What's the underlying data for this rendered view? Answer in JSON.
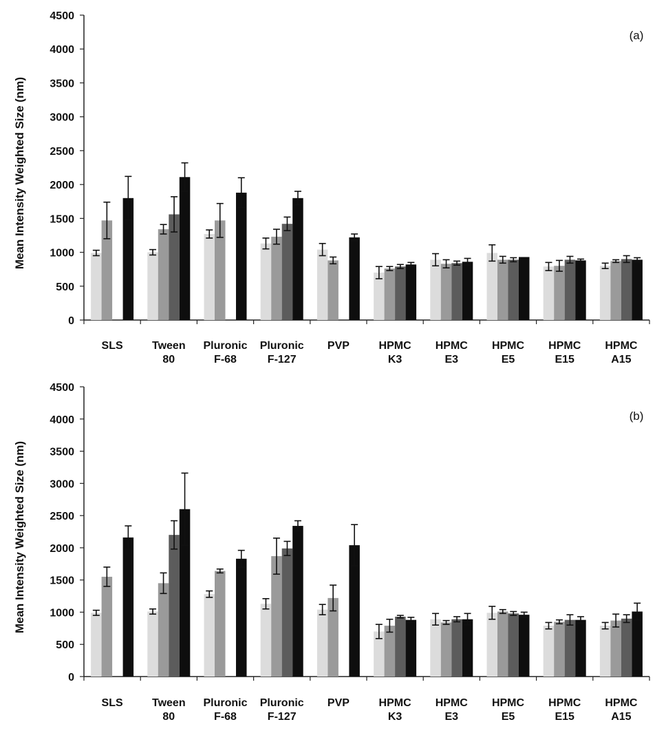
{
  "chart_data": [
    {
      "type": "bar",
      "panel_label": "(a)",
      "ylabel": "Mean Intensity Weighted Size (nm)",
      "ylim": [
        0,
        4500
      ],
      "yticks": [
        0,
        500,
        1000,
        1500,
        2000,
        2500,
        3000,
        3500,
        4000,
        4500
      ],
      "grid": false,
      "categories": [
        [
          "SLS"
        ],
        [
          "Tween",
          "80"
        ],
        [
          "Pluronic",
          "F-68"
        ],
        [
          "Pluronic",
          "F-127"
        ],
        [
          "PVP"
        ],
        [
          "HPMC",
          "K3"
        ],
        [
          "HPMC",
          "E3"
        ],
        [
          "HPMC",
          "E5"
        ],
        [
          "HPMC",
          "E15"
        ],
        [
          "HPMC",
          "A15"
        ]
      ],
      "series": [
        {
          "color": "#dcdcdc",
          "values": [
            990,
            1000,
            1270,
            1130,
            1040,
            700,
            890,
            990,
            790,
            800
          ],
          "errors": [
            40,
            40,
            60,
            80,
            90,
            90,
            90,
            120,
            60,
            40
          ]
        },
        {
          "color": "#9a9a9a",
          "values": [
            1470,
            1340,
            1470,
            1230,
            880,
            760,
            830,
            890,
            800,
            870
          ],
          "errors": [
            270,
            70,
            250,
            110,
            50,
            30,
            60,
            50,
            80,
            20
          ]
        },
        {
          "color": "#5c5c5c",
          "values": [
            null,
            1560,
            null,
            1420,
            null,
            790,
            840,
            890,
            890,
            900
          ],
          "errors": [
            null,
            260,
            null,
            100,
            null,
            30,
            30,
            30,
            50,
            50
          ]
        },
        {
          "color": "#0e0e0e",
          "values": [
            1800,
            2110,
            1880,
            1800,
            1220,
            820,
            860,
            930,
            880,
            890
          ],
          "errors": [
            320,
            210,
            220,
            100,
            50,
            30,
            50,
            0,
            20,
            30
          ]
        }
      ]
    },
    {
      "type": "bar",
      "panel_label": "(b)",
      "ylabel": "Mean Intensity Weighted Size (nm)",
      "ylim": [
        0,
        4500
      ],
      "yticks": [
        0,
        500,
        1000,
        1500,
        2000,
        2500,
        3000,
        3500,
        4000,
        4500
      ],
      "grid": false,
      "categories": [
        [
          "SLS"
        ],
        [
          "Tween",
          "80"
        ],
        [
          "Pluronic",
          "F-68"
        ],
        [
          "Pluronic",
          "F-127"
        ],
        [
          "PVP"
        ],
        [
          "HPMC",
          "K3"
        ],
        [
          "HPMC",
          "E3"
        ],
        [
          "HPMC",
          "E5"
        ],
        [
          "HPMC",
          "E15"
        ],
        [
          "HPMC",
          "A15"
        ]
      ],
      "series": [
        {
          "color": "#dcdcdc",
          "values": [
            990,
            1010,
            1280,
            1130,
            1040,
            700,
            890,
            990,
            790,
            790
          ],
          "errors": [
            40,
            40,
            50,
            80,
            80,
            110,
            90,
            100,
            50,
            50
          ]
        },
        {
          "color": "#9a9a9a",
          "values": [
            1550,
            1450,
            1640,
            1870,
            1220,
            790,
            840,
            1010,
            850,
            870
          ],
          "errors": [
            150,
            160,
            30,
            280,
            200,
            100,
            30,
            30,
            30,
            100
          ]
        },
        {
          "color": "#5c5c5c",
          "values": [
            null,
            2200,
            null,
            1990,
            null,
            930,
            890,
            980,
            880,
            900
          ],
          "errors": [
            null,
            220,
            null,
            110,
            null,
            20,
            40,
            30,
            80,
            60
          ]
        },
        {
          "color": "#0e0e0e",
          "values": [
            2160,
            2600,
            1830,
            2340,
            2040,
            880,
            890,
            960,
            880,
            1010
          ],
          "errors": [
            180,
            560,
            130,
            80,
            320,
            40,
            90,
            40,
            50,
            130
          ]
        }
      ]
    }
  ]
}
